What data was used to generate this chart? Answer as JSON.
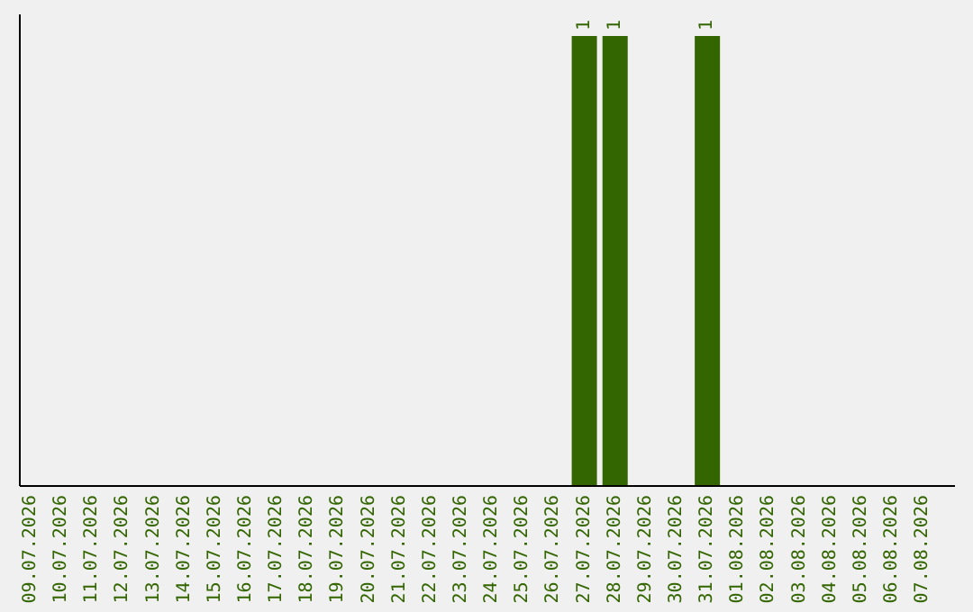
{
  "chart_data": {
    "type": "bar",
    "color": "#336600",
    "data_labels": true,
    "categories": [
      "09.07.2026",
      "10.07.2026",
      "11.07.2026",
      "12.07.2026",
      "13.07.2026",
      "14.07.2026",
      "15.07.2026",
      "16.07.2026",
      "17.07.2026",
      "18.07.2026",
      "19.07.2026",
      "20.07.2026",
      "21.07.2026",
      "22.07.2026",
      "23.07.2026",
      "24.07.2026",
      "25.07.2026",
      "26.07.2026",
      "27.07.2026",
      "28.07.2026",
      "29.07.2026",
      "30.07.2026",
      "31.07.2026",
      "01.08.2026",
      "02.08.2026",
      "03.08.2026",
      "04.08.2026",
      "05.08.2026",
      "06.08.2026",
      "07.08.2026"
    ],
    "values": [
      null,
      null,
      null,
      null,
      null,
      null,
      null,
      null,
      null,
      null,
      null,
      null,
      null,
      null,
      null,
      null,
      null,
      null,
      1,
      1,
      null,
      null,
      1,
      null,
      null,
      null,
      null,
      null,
      null,
      null
    ]
  }
}
